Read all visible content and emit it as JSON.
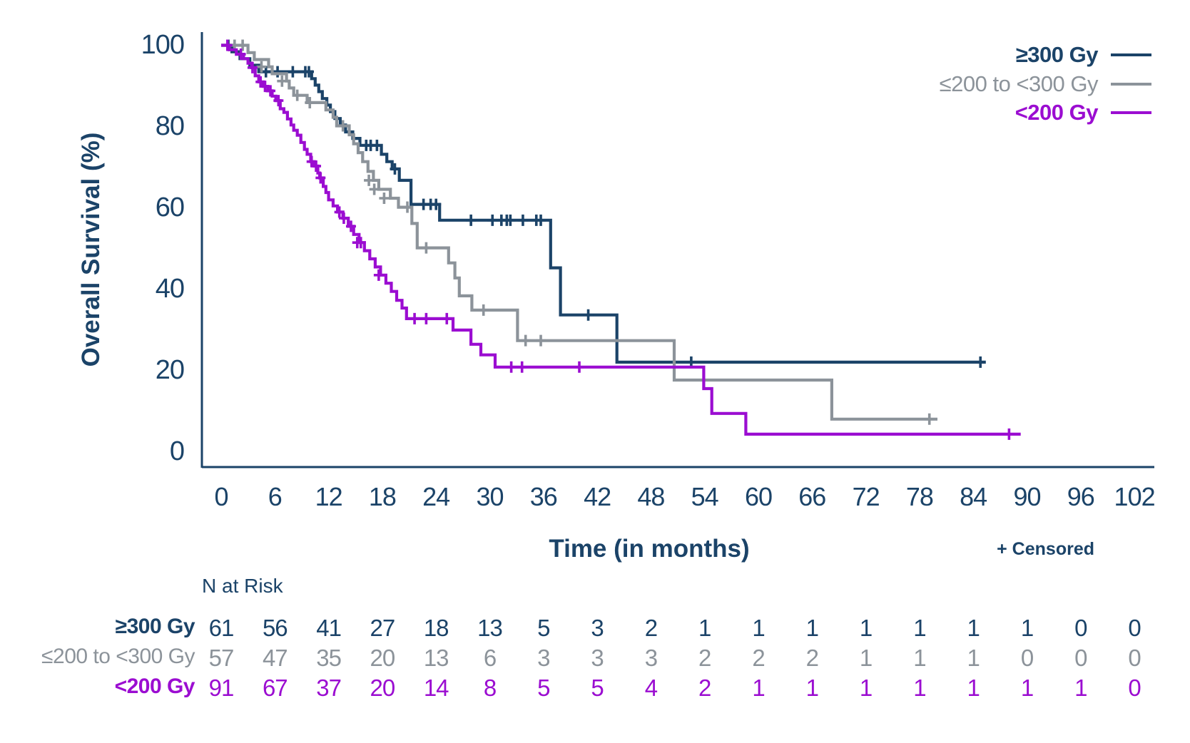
{
  "chart_data": {
    "type": "line",
    "subtype": "kaplan-meier-step",
    "title": "",
    "xlabel": "Time (in months)",
    "ylabel": "Overall Survival (%)",
    "censored_note": "+ Censored",
    "xlim": [
      0,
      102
    ],
    "ylim": [
      0,
      100
    ],
    "grid": false,
    "legend_position": "top-right",
    "x_ticks": [
      0,
      6,
      12,
      18,
      24,
      30,
      36,
      42,
      48,
      54,
      60,
      66,
      72,
      78,
      84,
      90,
      96,
      102
    ],
    "y_ticks": [
      100,
      80,
      60,
      40,
      20,
      0
    ],
    "axis_color": "#1b4368",
    "series": [
      {
        "name": "≥300 Gy",
        "color": "#1b4368",
        "bold_label": true,
        "steps": [
          [
            0,
            100
          ],
          [
            1.2,
            98.4
          ],
          [
            2.1,
            96.7
          ],
          [
            3.2,
            95.1
          ],
          [
            4.2,
            93.5
          ],
          [
            10.1,
            91.8
          ],
          [
            10.5,
            90.2
          ],
          [
            10.9,
            88.6
          ],
          [
            11.3,
            86.9
          ],
          [
            11.8,
            85.3
          ],
          [
            12.2,
            83.7
          ],
          [
            12.7,
            82.0
          ],
          [
            13.3,
            80.4
          ],
          [
            13.9,
            78.7
          ],
          [
            14.7,
            77.1
          ],
          [
            15.5,
            75.4
          ],
          [
            17.9,
            73.2
          ],
          [
            18.5,
            71.4
          ],
          [
            19.1,
            69.6
          ],
          [
            19.9,
            66.8
          ],
          [
            21.2,
            60.9
          ],
          [
            24.4,
            57.0
          ],
          [
            36.8,
            45.3
          ],
          [
            37.9,
            33.7
          ],
          [
            44.2,
            22.1
          ]
        ],
        "end_month": 85.4,
        "censors": [
          [
            0.8,
            100
          ],
          [
            5.0,
            93.5
          ],
          [
            6.3,
            93.5
          ],
          [
            8.0,
            93.5
          ],
          [
            9.4,
            93.5
          ],
          [
            9.8,
            93.5
          ],
          [
            16.2,
            75.4
          ],
          [
            16.7,
            75.4
          ],
          [
            17.4,
            75.4
          ],
          [
            19.4,
            69.6
          ],
          [
            22.6,
            60.9
          ],
          [
            23.4,
            60.9
          ],
          [
            24.0,
            60.9
          ],
          [
            27.9,
            57.0
          ],
          [
            30.3,
            57.0
          ],
          [
            31.3,
            57.0
          ],
          [
            31.9,
            57.0
          ],
          [
            32.3,
            57.0
          ],
          [
            33.7,
            57.0
          ],
          [
            35.2,
            57.0
          ],
          [
            35.7,
            57.0
          ],
          [
            41.0,
            33.7
          ],
          [
            52.5,
            22.1
          ],
          [
            84.8,
            22.1
          ]
        ]
      },
      {
        "name": "≤200 to <300 Gy",
        "color": "#8c939a",
        "bold_label": false,
        "steps": [
          [
            0,
            100
          ],
          [
            3.0,
            98.2
          ],
          [
            3.7,
            96.5
          ],
          [
            5.3,
            94.7
          ],
          [
            5.7,
            93.0
          ],
          [
            7.3,
            91.2
          ],
          [
            7.6,
            89.5
          ],
          [
            8.1,
            87.7
          ],
          [
            9.6,
            85.9
          ],
          [
            11.7,
            84.1
          ],
          [
            12.5,
            82.3
          ],
          [
            12.9,
            80.2
          ],
          [
            14.3,
            78.0
          ],
          [
            14.8,
            75.8
          ],
          [
            15.3,
            73.6
          ],
          [
            15.8,
            71.4
          ],
          [
            16.4,
            69.0
          ],
          [
            17.0,
            66.8
          ],
          [
            17.6,
            64.6
          ],
          [
            18.9,
            62.4
          ],
          [
            19.8,
            60.2
          ],
          [
            21.3,
            56.2
          ],
          [
            21.9,
            50.2
          ],
          [
            25.4,
            46.5
          ],
          [
            26.1,
            42.8
          ],
          [
            26.6,
            38.4
          ],
          [
            28.0,
            34.9
          ],
          [
            33.1,
            27.4
          ],
          [
            50.6,
            17.7
          ],
          [
            68.2,
            8.1
          ]
        ],
        "end_month": 80.0,
        "censors": [
          [
            1.5,
            100
          ],
          [
            2.4,
            100
          ],
          [
            4.5,
            94.7
          ],
          [
            6.8,
            91.2
          ],
          [
            8.5,
            87.7
          ],
          [
            9.9,
            85.9
          ],
          [
            13.6,
            80.2
          ],
          [
            16.5,
            66.8
          ],
          [
            17.1,
            64.6
          ],
          [
            18.2,
            62.4
          ],
          [
            20.8,
            60.2
          ],
          [
            22.9,
            50.2
          ],
          [
            29.3,
            34.9
          ],
          [
            34.0,
            27.4
          ],
          [
            35.7,
            27.4
          ],
          [
            79.1,
            8.1
          ]
        ]
      },
      {
        "name": "<200 Gy",
        "color": "#9b0dd1",
        "bold_label": true,
        "steps": [
          [
            0,
            100
          ],
          [
            0.9,
            98.9
          ],
          [
            1.7,
            97.8
          ],
          [
            2.5,
            96.7
          ],
          [
            3.0,
            95.6
          ],
          [
            3.4,
            94.5
          ],
          [
            3.8,
            92.5
          ],
          [
            4.2,
            91.0
          ],
          [
            4.7,
            89.9
          ],
          [
            5.2,
            88.8
          ],
          [
            5.7,
            87.5
          ],
          [
            6.1,
            86.4
          ],
          [
            6.6,
            84.4
          ],
          [
            7.0,
            83.5
          ],
          [
            7.4,
            81.9
          ],
          [
            7.8,
            80.4
          ],
          [
            8.1,
            79.1
          ],
          [
            8.5,
            77.9
          ],
          [
            8.9,
            76.1
          ],
          [
            9.3,
            74.4
          ],
          [
            9.6,
            73.2
          ],
          [
            10.0,
            71.4
          ],
          [
            10.4,
            70.3
          ],
          [
            10.8,
            68.6
          ],
          [
            11.0,
            67.4
          ],
          [
            11.4,
            65.3
          ],
          [
            11.7,
            63.8
          ],
          [
            12.0,
            62.0
          ],
          [
            12.5,
            60.5
          ],
          [
            13.0,
            59.0
          ],
          [
            13.6,
            57.5
          ],
          [
            14.2,
            55.5
          ],
          [
            14.8,
            53.5
          ],
          [
            15.4,
            51.5
          ],
          [
            16.0,
            49.5
          ],
          [
            16.6,
            47.5
          ],
          [
            17.2,
            45.5
          ],
          [
            17.8,
            43.5
          ],
          [
            18.4,
            41.5
          ],
          [
            19.0,
            39.5
          ],
          [
            19.6,
            37.3
          ],
          [
            20.2,
            35.4
          ],
          [
            20.7,
            32.8
          ],
          [
            25.9,
            30.0
          ],
          [
            27.9,
            26.5
          ],
          [
            29.0,
            23.9
          ],
          [
            30.6,
            20.9
          ],
          [
            53.9,
            15.6
          ],
          [
            54.8,
            9.5
          ],
          [
            58.6,
            4.4
          ]
        ],
        "end_month": 89.3,
        "censors": [
          [
            0.7,
            100
          ],
          [
            2.2,
            97.8
          ],
          [
            3.5,
            94.5
          ],
          [
            4.4,
            91.0
          ],
          [
            4.9,
            89.9
          ],
          [
            5.5,
            88.8
          ],
          [
            6.4,
            86.4
          ],
          [
            10.1,
            71.4
          ],
          [
            10.6,
            70.3
          ],
          [
            11.1,
            67.4
          ],
          [
            13.2,
            59.0
          ],
          [
            13.7,
            57.5
          ],
          [
            14.5,
            55.5
          ],
          [
            15.2,
            51.5
          ],
          [
            15.6,
            51.5
          ],
          [
            17.6,
            43.5
          ],
          [
            21.6,
            32.8
          ],
          [
            22.9,
            32.8
          ],
          [
            25.2,
            32.8
          ],
          [
            32.4,
            20.9
          ],
          [
            33.6,
            20.9
          ],
          [
            40.0,
            20.9
          ],
          [
            88.0,
            4.4
          ]
        ]
      }
    ],
    "risk_table": {
      "header": "N at Risk",
      "months": [
        0,
        6,
        12,
        18,
        24,
        30,
        36,
        42,
        48,
        54,
        60,
        66,
        72,
        78,
        84,
        90,
        96,
        102
      ],
      "rows": [
        {
          "label": "≥300 Gy",
          "color": "#1b4368",
          "bold": true,
          "values": [
            61,
            56,
            41,
            27,
            18,
            13,
            5,
            3,
            2,
            1,
            1,
            1,
            1,
            1,
            1,
            1,
            0,
            0
          ]
        },
        {
          "label": "≤200 to <300 Gy",
          "color": "#8c939a",
          "bold": false,
          "values": [
            57,
            47,
            35,
            20,
            13,
            6,
            3,
            3,
            3,
            2,
            2,
            2,
            1,
            1,
            1,
            0,
            0,
            0
          ]
        },
        {
          "label": "<200 Gy",
          "color": "#9b0dd1",
          "bold": true,
          "values": [
            91,
            67,
            37,
            20,
            14,
            8,
            5,
            5,
            4,
            2,
            1,
            1,
            1,
            1,
            1,
            1,
            1,
            0
          ]
        }
      ]
    }
  }
}
